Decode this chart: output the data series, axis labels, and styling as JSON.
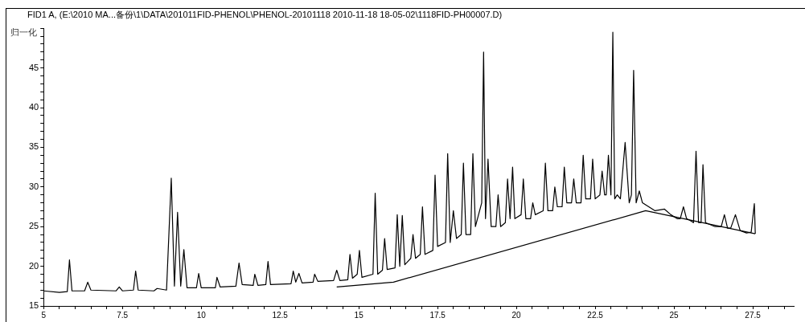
{
  "chart_data": {
    "type": "line",
    "title": "FID1 A, (E:\\2010 MA...备份\\1\\DATA\\201011FID-PHENOL\\PHENOL-20101118 2010-11-18 18-05-02\\1118FID-PH00007.D)",
    "ylabel": "归一化",
    "xlim": [
      5,
      28.8
    ],
    "ylim": [
      15,
      50
    ],
    "grid": false,
    "legend": false,
    "marker": "none",
    "line_style": "solid",
    "xticks": [
      5,
      {
        "value": 5.5,
        "label": null
      },
      {
        "value": 6,
        "label": null
      },
      {
        "value": 6.5,
        "label": null
      },
      {
        "value": 7,
        "label": null
      },
      7.5,
      {
        "value": 8,
        "label": null
      },
      {
        "value": 8.5,
        "label": null
      },
      {
        "value": 9,
        "label": null
      },
      {
        "value": 9.5,
        "label": null
      },
      10,
      {
        "value": 10.5,
        "label": null
      },
      {
        "value": 11,
        "label": null
      },
      {
        "value": 11.5,
        "label": null
      },
      {
        "value": 12,
        "label": null
      },
      12.5,
      {
        "value": 13,
        "label": null
      },
      {
        "value": 13.5,
        "label": null
      },
      {
        "value": 14,
        "label": null
      },
      {
        "value": 14.5,
        "label": null
      },
      15,
      {
        "value": 15.5,
        "label": null
      },
      {
        "value": 16,
        "label": null
      },
      {
        "value": 16.5,
        "label": null
      },
      {
        "value": 17,
        "label": null
      },
      17.5,
      {
        "value": 18,
        "label": null
      },
      {
        "value": 18.5,
        "label": null
      },
      {
        "value": 19,
        "label": null
      },
      {
        "value": 19.5,
        "label": null
      },
      20,
      {
        "value": 20.5,
        "label": null
      },
      {
        "value": 21,
        "label": null
      },
      {
        "value": 21.5,
        "label": null
      },
      {
        "value": 22,
        "label": null
      },
      22.5,
      {
        "value": 23,
        "label": null
      },
      {
        "value": 23.5,
        "label": null
      },
      {
        "value": 24,
        "label": null
      },
      {
        "value": 24.5,
        "label": null
      },
      25,
      {
        "value": 25.5,
        "label": null
      },
      {
        "value": 26,
        "label": null
      },
      {
        "value": 26.5,
        "label": null
      },
      {
        "value": 27,
        "label": null
      },
      27.5,
      {
        "value": 28,
        "label": null
      },
      {
        "value": 28.5,
        "label": null
      }
    ],
    "yticks": [
      15,
      {
        "value": 16,
        "label": null
      },
      {
        "value": 17,
        "label": null
      },
      {
        "value": 18,
        "label": null
      },
      {
        "value": 19,
        "label": null
      },
      20,
      {
        "value": 21,
        "label": null
      },
      {
        "value": 22,
        "label": null
      },
      {
        "value": 23,
        "label": null
      },
      {
        "value": 24,
        "label": null
      },
      25,
      {
        "value": 26,
        "label": null
      },
      {
        "value": 27,
        "label": null
      },
      {
        "value": 28,
        "label": null
      },
      {
        "value": 29,
        "label": null
      },
      30,
      {
        "value": 31,
        "label": null
      },
      {
        "value": 32,
        "label": null
      },
      {
        "value": 33,
        "label": null
      },
      {
        "value": 34,
        "label": null
      },
      35,
      {
        "value": 36,
        "label": null
      },
      {
        "value": 37,
        "label": null
      },
      {
        "value": 38,
        "label": null
      },
      {
        "value": 39,
        "label": null
      },
      40,
      {
        "value": 41,
        "label": null
      },
      {
        "value": 42,
        "label": null
      },
      {
        "value": 43,
        "label": null
      },
      {
        "value": 44,
        "label": null
      },
      45,
      {
        "value": 46,
        "label": null
      },
      {
        "value": 47,
        "label": null
      },
      {
        "value": 48,
        "label": null
      },
      {
        "value": 49,
        "label": null
      },
      {
        "value": 50,
        "label": null
      }
    ],
    "series": [
      {
        "color": "#000000",
        "x": [
          5,
          5.5,
          5.75,
          5.82,
          5.9,
          6.3,
          6.4,
          6.5,
          7.3,
          7.4,
          7.5,
          7.85,
          7.92,
          8.0,
          8.5,
          8.6,
          8.9,
          9.05,
          9.15,
          9.25,
          9.35,
          9.45,
          9.55,
          9.85,
          9.92,
          10.0,
          10.45,
          10.5,
          10.6,
          11.1,
          11.2,
          11.3,
          11.65,
          11.7,
          11.8,
          12.05,
          12.12,
          12.2,
          12.85,
          12.92,
          13.0,
          13.1,
          13.2,
          13.55,
          13.6,
          13.7,
          14.2,
          14.3,
          14.4,
          14.65,
          14.72,
          14.8,
          14.95,
          15.02,
          15.1,
          15.45,
          15.52,
          15.6,
          15.75,
          15.82,
          15.9,
          16.15,
          16.22,
          16.3,
          16.38,
          16.46,
          16.65,
          16.72,
          16.8,
          16.95,
          17.02,
          17.1,
          17.35,
          17.42,
          17.5,
          17.75,
          17.82,
          17.9,
          18.0,
          18.1,
          18.25,
          18.32,
          18.4,
          18.55,
          18.62,
          18.7,
          18.9,
          18.96,
          19.02,
          19.1,
          19.2,
          19.35,
          19.42,
          19.5,
          19.65,
          19.72,
          19.8,
          19.88,
          19.95,
          20.15,
          20.22,
          20.3,
          20.45,
          20.52,
          20.6,
          20.85,
          20.92,
          21.0,
          21.15,
          21.22,
          21.3,
          21.45,
          21.52,
          21.6,
          21.75,
          21.82,
          21.9,
          22.05,
          22.12,
          22.2,
          22.35,
          22.42,
          22.5,
          22.65,
          22.72,
          22.8,
          22.85,
          22.92,
          23.0,
          23.06,
          23.12,
          23.2,
          23.3,
          23.45,
          23.58,
          23.65,
          23.72,
          23.8,
          23.9,
          24.0,
          24.2,
          24.4,
          24.7,
          24.9,
          25.1,
          25.2,
          25.3,
          25.4,
          25.5,
          25.62,
          25.7,
          25.78,
          25.86,
          25.92,
          26.0,
          26.3,
          26.5,
          26.6,
          26.7,
          26.8,
          26.95,
          27.1,
          27.3,
          27.45,
          27.55,
          27.58
        ],
        "values": [
          16.9,
          16.7,
          16.8,
          20.8,
          16.9,
          16.9,
          18,
          17,
          16.9,
          17.4,
          16.9,
          17,
          19.4,
          17,
          16.9,
          17.2,
          17,
          31.1,
          17.5,
          26.8,
          17.5,
          22.1,
          17.3,
          17.3,
          19.1,
          17.3,
          17.3,
          18.6,
          17.4,
          17.5,
          20.4,
          17.7,
          17.6,
          19,
          17.6,
          17.7,
          20.6,
          17.7,
          17.8,
          19.4,
          18,
          19.1,
          17.9,
          18,
          19,
          18.1,
          18.2,
          19.5,
          18.2,
          18.3,
          21.5,
          18.5,
          19,
          22,
          18.6,
          19,
          29.2,
          19,
          19.5,
          23.5,
          19.6,
          19.8,
          26.5,
          20,
          26.4,
          20.2,
          21,
          24,
          21,
          21.5,
          27.5,
          21.5,
          22,
          31.5,
          22.5,
          23,
          34.2,
          23,
          27,
          23.5,
          24,
          33,
          24,
          24,
          34.2,
          25,
          28,
          47,
          26,
          33.5,
          25,
          25,
          29,
          25,
          25.5,
          31,
          26,
          32.5,
          26,
          26.5,
          31,
          26,
          26,
          28,
          26.5,
          27,
          33,
          27,
          27,
          30,
          27.5,
          27.5,
          32.5,
          28,
          28,
          31,
          28,
          28,
          34,
          28.5,
          28.5,
          33.5,
          28.5,
          29,
          32,
          29,
          29,
          34,
          29,
          49.5,
          28.5,
          29,
          28.5,
          35.6,
          28,
          29,
          44.7,
          28,
          29.5,
          28,
          27.5,
          27,
          27.2,
          26.5,
          26,
          26,
          27.5,
          26,
          25.8,
          25.5,
          34.5,
          25.5,
          25.5,
          32.8,
          25.5,
          25,
          25,
          26.5,
          24.8,
          24.8,
          26.5,
          24.5,
          24.2,
          24.3,
          27.9,
          24.1
        ]
      },
      {
        "color": "#000000",
        "x": [
          14.3,
          16.1,
          24.1,
          27.58
        ],
        "values": [
          17.4,
          18.0,
          27.0,
          24.1
        ]
      }
    ]
  }
}
